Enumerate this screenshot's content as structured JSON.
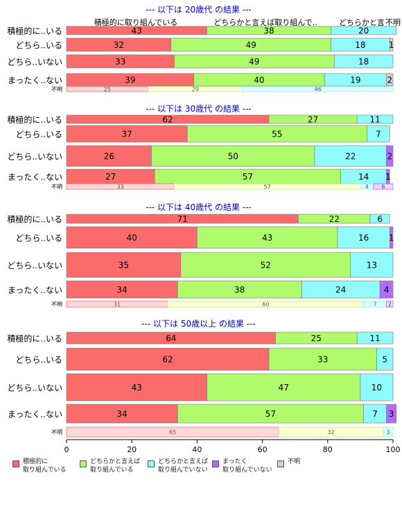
{
  "chart_data": {
    "type": "bar",
    "orientation": "horizontal",
    "stacked": true,
    "xlim": [
      0,
      100
    ],
    "x_ticks": [
      "0",
      "20",
      "40",
      "60",
      "80",
      "100"
    ],
    "colors": {
      "積極的に取り組んでいる": "#fb6b6b",
      "どちらかと言えば取り組んでいる": "#b0fb6b",
      "どちらかと言えば取り組んでいない": "#91fbfb",
      "まったく取り組んでいない": "#b36bfb",
      "不明": "#d0d0d0"
    },
    "header_labels": [
      "積極的に取り組んでいる",
      "どちらかと言えば取り組んで..",
      "どちらかと言",
      "不明"
    ],
    "legend": [
      {
        "label": "積極的に\n取り組んでいる",
        "color": "#fb6b6b"
      },
      {
        "label": "どちらかと言えば\n取り組んでいる",
        "color": "#b0fb6b"
      },
      {
        "label": "どちらかと言えば\n取り組んでいない",
        "color": "#91fbfb"
      },
      {
        "label": "まったく\n取り組んでいない",
        "color": "#b36bfb"
      },
      {
        "label": "不明",
        "color": "#d0d0d0"
      }
    ],
    "panels": [
      {
        "title": "--- 以下は 20歳代 の結果 ---",
        "rows": [
          {
            "label": "積極的に..いる",
            "values": [
              43,
              38,
              20,
              null,
              null
            ]
          },
          {
            "label": "どちら..いる",
            "values": [
              32,
              49,
              18,
              null,
              1
            ]
          },
          {
            "label": "どちら..いない",
            "values": [
              33,
              49,
              18,
              null,
              null
            ]
          },
          {
            "label": "まったく..ない",
            "values": [
              39,
              40,
              19,
              null,
              2
            ]
          }
        ],
        "unknown": {
          "label": "不明",
          "values": [
            25,
            29,
            46,
            null,
            null
          ]
        }
      },
      {
        "title": "--- 以下は 30歳代 の結果 ---",
        "rows": [
          {
            "label": "積極的に..いる",
            "values": [
              62,
              27,
              11,
              null,
              null
            ]
          },
          {
            "label": "どちら..いる",
            "values": [
              37,
              55,
              7,
              null,
              null
            ]
          },
          {
            "label": "どちら..いない",
            "values": [
              26,
              50,
              22,
              2,
              null
            ]
          },
          {
            "label": "まったく..ない",
            "values": [
              27,
              57,
              14,
              1,
              null
            ]
          }
        ],
        "unknown": {
          "label": "不明",
          "values": [
            33,
            57,
            4,
            6,
            null
          ]
        }
      },
      {
        "title": "--- 以下は 40歳代 の結果 ---",
        "rows": [
          {
            "label": "積極的に..いる",
            "values": [
              71,
              22,
              6,
              null,
              null
            ]
          },
          {
            "label": "どちら..いる",
            "values": [
              40,
              43,
              16,
              1,
              null
            ]
          },
          {
            "label": "どちら..いない",
            "values": [
              35,
              52,
              13,
              null,
              null
            ]
          },
          {
            "label": "まったく..ない",
            "values": [
              34,
              38,
              24,
              4,
              null
            ]
          }
        ],
        "unknown": {
          "label": "不明",
          "values": [
            31,
            60,
            7,
            2,
            null
          ]
        }
      },
      {
        "title": "--- 以下は 50歳以上 の結果 ---",
        "rows": [
          {
            "label": "積極的に..いる",
            "values": [
              64,
              25,
              11,
              null,
              null
            ]
          },
          {
            "label": "どちら..いる",
            "values": [
              62,
              33,
              5,
              null,
              null
            ]
          },
          {
            "label": "どちら..いない",
            "values": [
              43,
              47,
              10,
              null,
              null
            ]
          },
          {
            "label": "まったく..ない",
            "values": [
              34,
              57,
              7,
              3,
              null
            ]
          }
        ],
        "unknown": {
          "label": "不明",
          "values": [
            65,
            32,
            3,
            null,
            null
          ]
        }
      }
    ]
  }
}
